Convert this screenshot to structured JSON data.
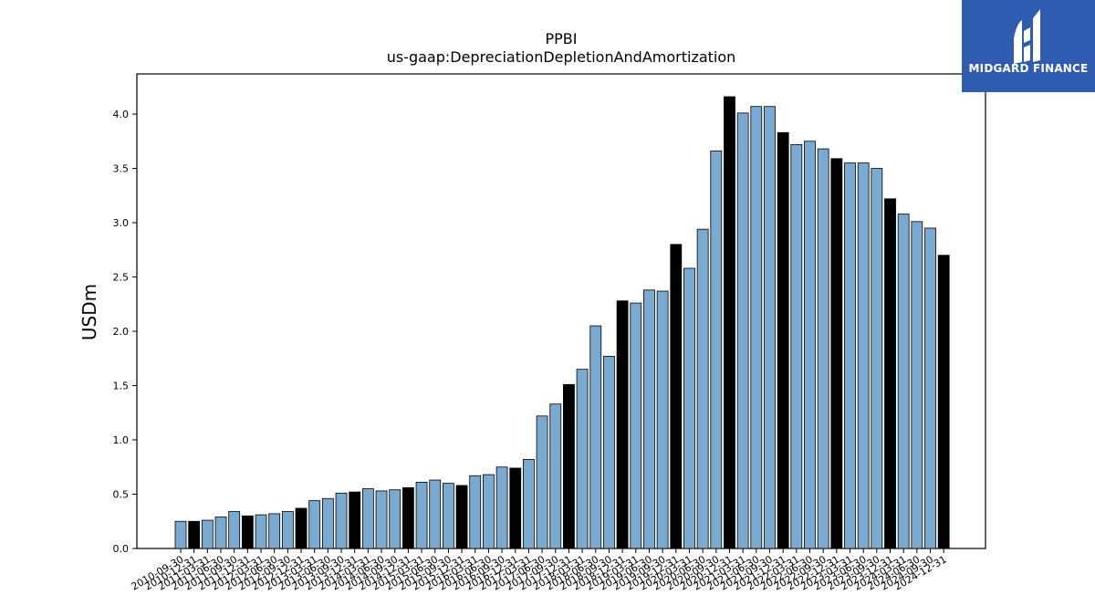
{
  "brand": {
    "name": "MIDGARD FINANCE",
    "bg_color": "#2f5bb0",
    "icon": "midgard-logo-icon"
  },
  "chart_data": {
    "type": "bar",
    "title": "PPBI",
    "subtitle": "us-gaap:DepreciationDepletionAndAmortization",
    "xlabel": "",
    "ylabel": "USDm",
    "ylim": [
      0,
      4.37
    ],
    "yticks": [
      "0.0",
      "0.5",
      "1.0",
      "1.5",
      "2.0",
      "2.5",
      "3.0",
      "3.5",
      "4.0"
    ],
    "grid": false,
    "colors": {
      "quarter": "#7aaad0",
      "year_end": "#000000",
      "edge": "#000000"
    },
    "categories": [
      "2010-09-30",
      "2010-12-31",
      "2011-03-31",
      "2011-06-30",
      "2011-09-30",
      "2011-12-31",
      "2012-03-31",
      "2012-06-30",
      "2012-09-30",
      "2012-12-31",
      "2013-03-31",
      "2013-06-30",
      "2013-09-30",
      "2013-12-31",
      "2014-03-31",
      "2014-06-30",
      "2014-09-30",
      "2014-12-31",
      "2015-03-31",
      "2015-06-30",
      "2015-09-30",
      "2015-12-31",
      "2016-03-31",
      "2016-06-30",
      "2016-09-30",
      "2016-12-31",
      "2017-03-31",
      "2017-06-30",
      "2017-09-30",
      "2017-12-31",
      "2018-03-31",
      "2018-06-30",
      "2018-09-30",
      "2018-12-31",
      "2019-03-31",
      "2019-06-30",
      "2019-09-30",
      "2019-12-31",
      "2020-03-31",
      "2020-06-30",
      "2020-09-30",
      "2020-12-31",
      "2021-03-31",
      "2021-06-30",
      "2021-09-30",
      "2021-12-31",
      "2022-03-31",
      "2022-06-30",
      "2022-09-30",
      "2022-12-31",
      "2023-03-31",
      "2023-06-30",
      "2023-09-30",
      "2023-12-31",
      "2024-03-31",
      "2024-06-30",
      "2024-09-30",
      "2024-12-31"
    ],
    "values": [
      0.25,
      0.25,
      0.26,
      0.29,
      0.34,
      0.3,
      0.31,
      0.32,
      0.34,
      0.37,
      0.44,
      0.46,
      0.51,
      0.52,
      0.55,
      0.53,
      0.54,
      0.56,
      0.61,
      0.63,
      0.6,
      0.58,
      0.67,
      0.68,
      0.75,
      0.74,
      0.82,
      1.22,
      1.33,
      1.51,
      1.65,
      2.05,
      1.77,
      2.28,
      2.26,
      2.38,
      2.37,
      2.8,
      2.58,
      2.94,
      3.66,
      4.16,
      4.01,
      4.07,
      4.07,
      3.83,
      3.72,
      3.75,
      3.68,
      3.59,
      3.55,
      3.55,
      3.5,
      3.22,
      3.08,
      3.01,
      2.95,
      2.7
    ]
  }
}
